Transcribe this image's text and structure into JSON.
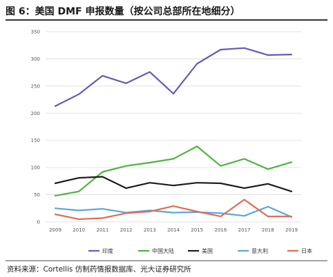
{
  "figure": {
    "title": "图 6：美国 DMF 申报数量（按公司总部所在地细分）",
    "source": "资料来源：Cortellis 仿制药情报数据库、光大证券研究所"
  },
  "chart_data": {
    "type": "line",
    "x": [
      "2009",
      "2010",
      "2011",
      "2012",
      "2013",
      "2014",
      "2015",
      "2016",
      "2017",
      "2018",
      "2019"
    ],
    "ylim": [
      0,
      350
    ],
    "yticks": [
      0,
      50,
      100,
      150,
      200,
      250,
      300,
      350
    ],
    "grid": true,
    "legend_position": "bottom",
    "series": [
      {
        "name": "印度",
        "color": "#6a57b5",
        "values": [
          213,
          235,
          269,
          255,
          276,
          236,
          291,
          317,
          320,
          307,
          308
        ]
      },
      {
        "name": "中国大陆",
        "color": "#4db33d",
        "values": [
          48,
          56,
          92,
          103,
          109,
          116,
          139,
          103,
          116,
          97,
          110
        ]
      },
      {
        "name": "美国",
        "color": "#1c1c1c",
        "values": [
          71,
          81,
          83,
          62,
          72,
          67,
          72,
          71,
          62,
          70,
          56
        ]
      },
      {
        "name": "意大利",
        "color": "#5aa6d6",
        "values": [
          25,
          21,
          24,
          17,
          21,
          17,
          18,
          16,
          11,
          28,
          9
        ]
      },
      {
        "name": "日本",
        "color": "#e06c5a",
        "values": [
          14,
          5,
          7,
          16,
          19,
          29,
          19,
          10,
          41,
          10,
          10
        ]
      }
    ]
  }
}
